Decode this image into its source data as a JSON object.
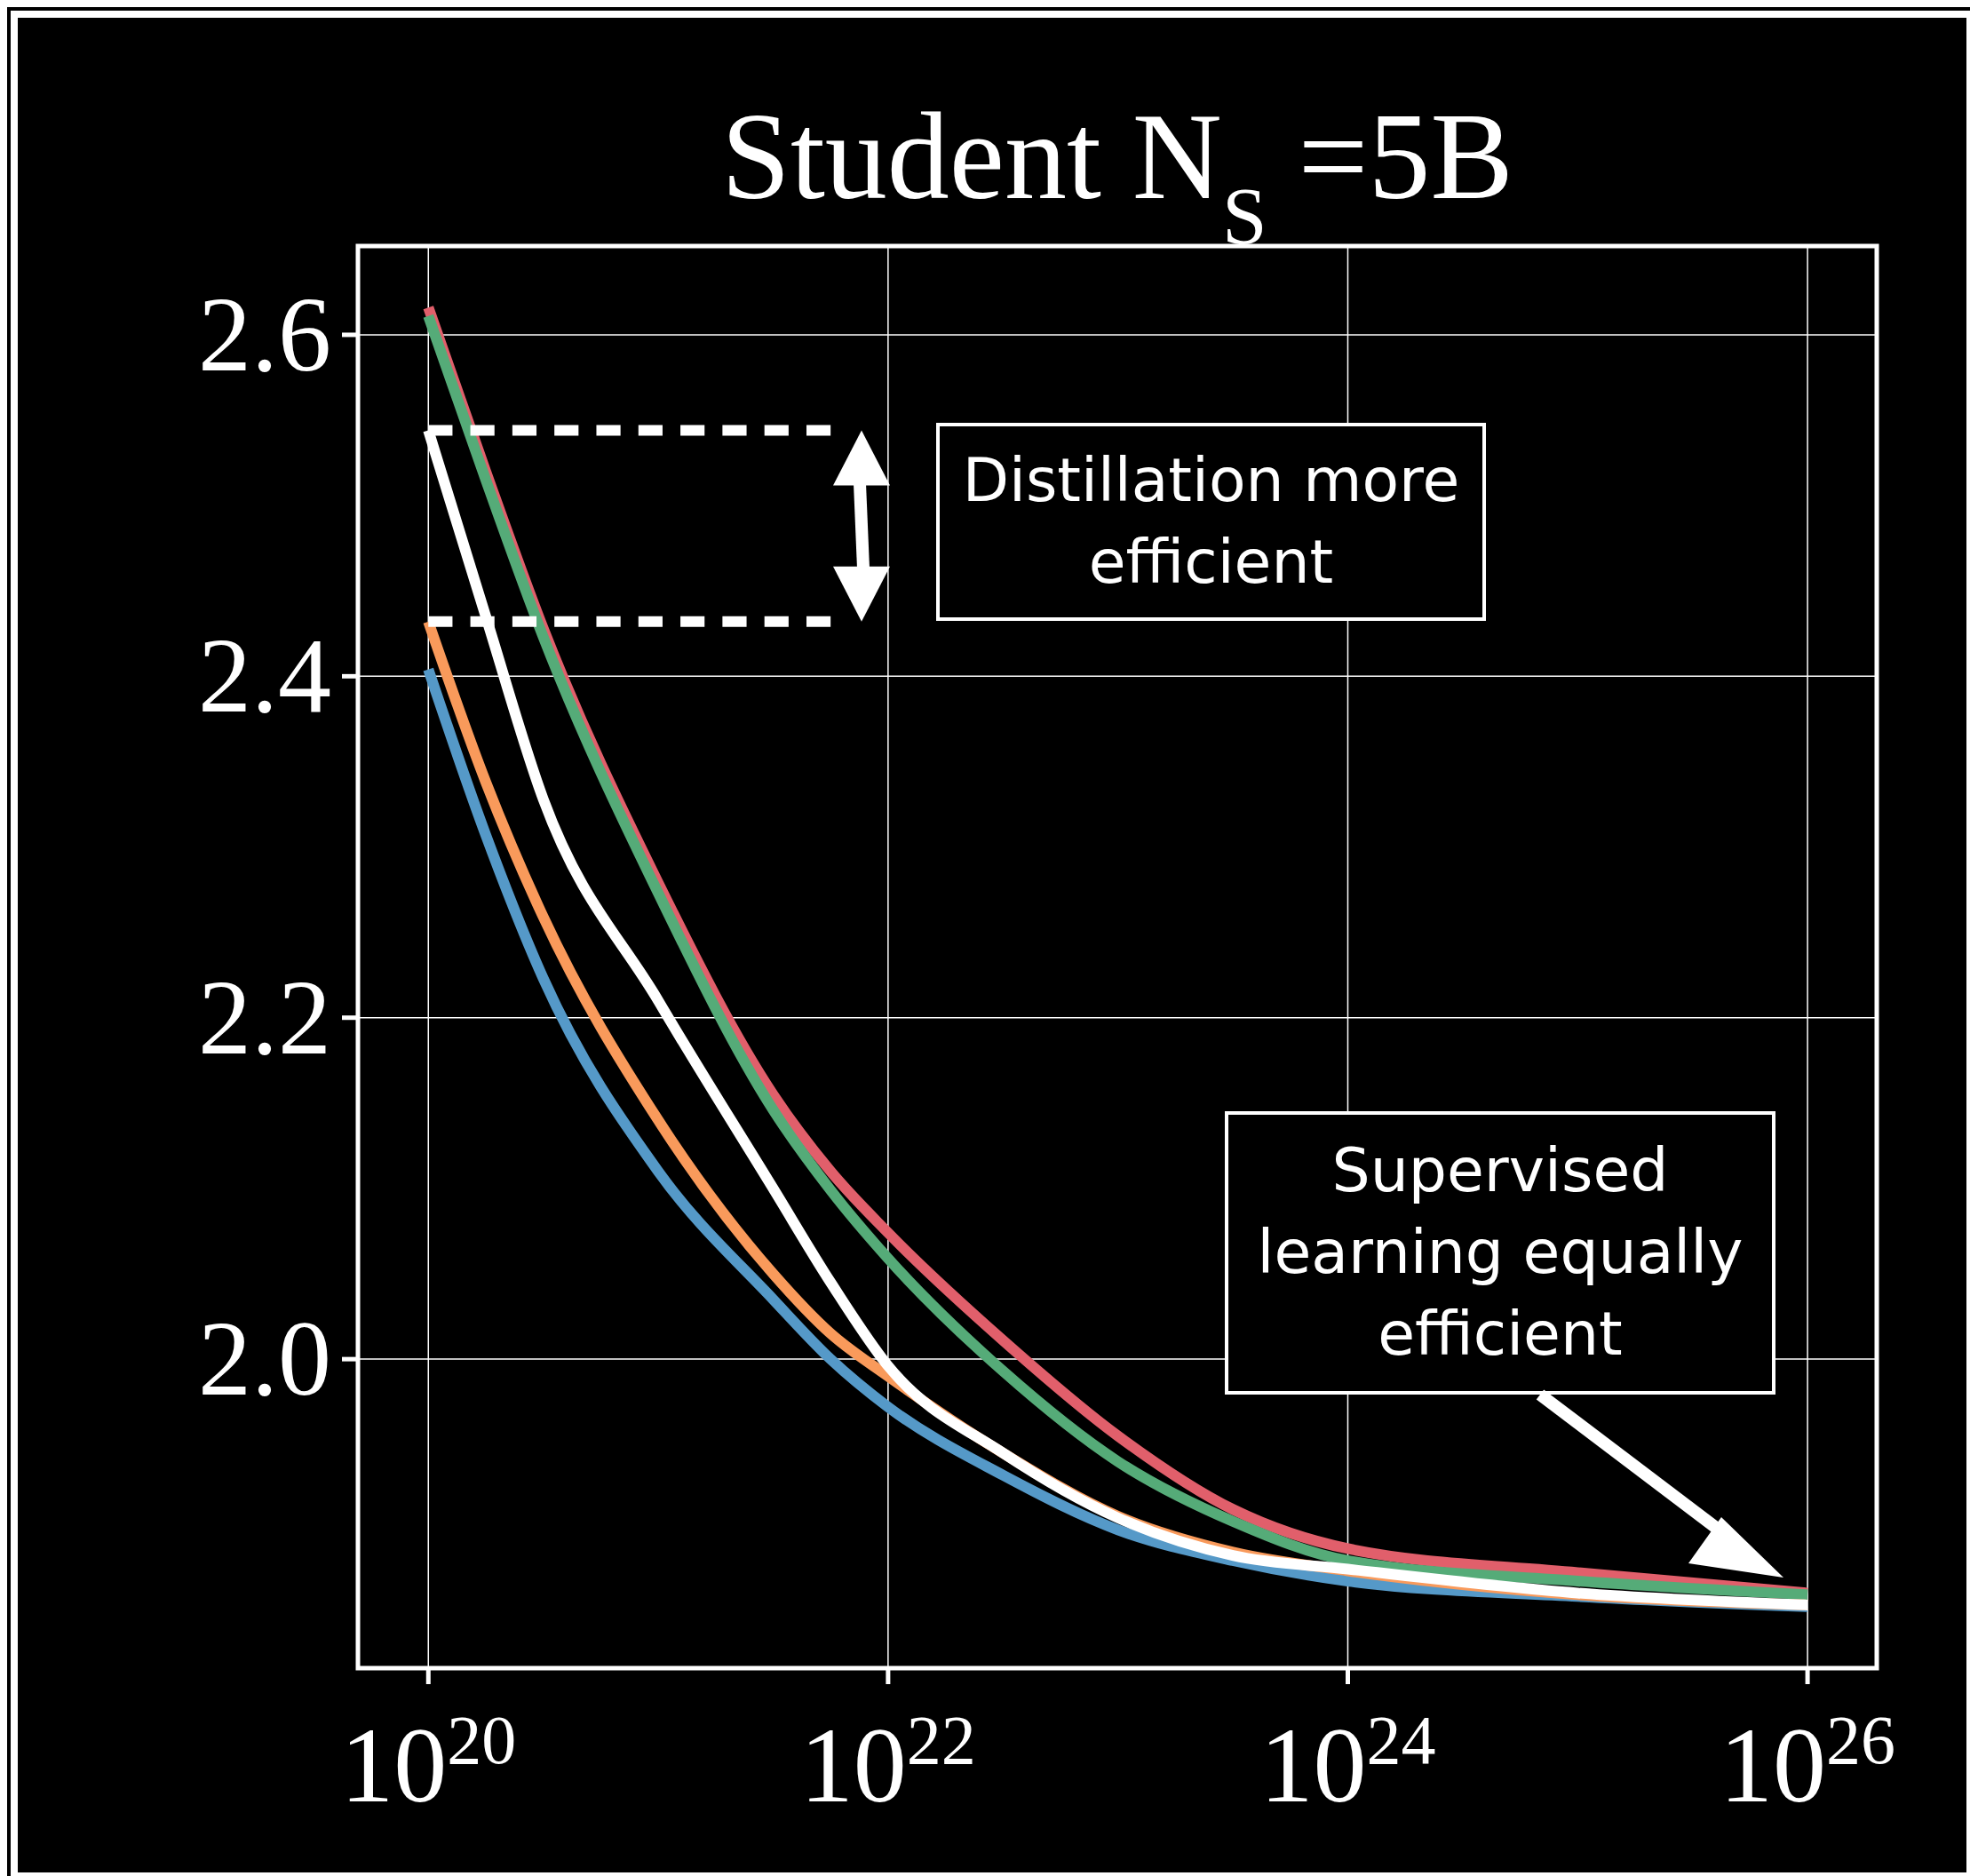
{
  "chart_data": {
    "type": "line",
    "title": "Student N$_{S}$ =5B",
    "log": "x",
    "grid": true,
    "xlim": [
      4.94e+19,
      2e+26
    ],
    "ylim": [
      1.819,
      2.652
    ],
    "xticks": [
      {
        "value": 1e+20,
        "label": "10$^{20}$"
      },
      {
        "value": 1e+22,
        "label": "10$^{22}$"
      },
      {
        "value": 1e+24,
        "label": "10$^{24}$"
      },
      {
        "value": 1e+26,
        "label": "10$^{26}$"
      }
    ],
    "yticks": [
      {
        "value": 2.0,
        "label": "2.0"
      },
      2.2,
      2.4,
      2.6
    ],
    "x": [
      1e+20,
      1.778e+20,
      3.162e+20,
      1e+21,
      3.162e+21,
      5.623e+21,
      1e+22,
      3.162e+22,
      1e+23,
      3.162e+23,
      1e+24,
      1e+25,
      1e+26
    ],
    "series": [
      {
        "color": "#e15f6b",
        "values": [
          2.616,
          2.52,
          2.428,
          2.279,
          2.155,
          2.11,
          2.074,
          2.011,
          1.955,
          1.912,
          1.889,
          1.875,
          1.863
        ]
      },
      {
        "color": "#55ab78",
        "values": [
          2.611,
          2.515,
          2.423,
          2.273,
          2.146,
          2.099,
          2.059,
          1.993,
          1.94,
          1.905,
          1.882,
          1.87,
          1.862
        ]
      },
      {
        "color": "#5599c8",
        "values": [
          2.404,
          2.307,
          2.223,
          2.11,
          2.035,
          2.0,
          1.972,
          1.932,
          1.9,
          1.882,
          1.87,
          1.861,
          1.855
        ]
      },
      {
        "color": "#f99a5b",
        "values": [
          2.432,
          2.338,
          2.259,
          2.14,
          2.05,
          2.015,
          1.99,
          1.945,
          1.908,
          1.887,
          1.876,
          1.862,
          1.856
        ]
      },
      {
        "color": "#ffffff",
        "values": [
          2.544,
          2.435,
          2.328,
          2.21,
          2.1,
          2.045,
          1.996,
          1.945,
          1.907,
          1.885,
          1.877,
          1.863,
          1.856
        ]
      },
      {
        "color": "#ffffff",
        "line_style": "dashed",
        "values": [
          2.544,
          null,
          null,
          null,
          null,
          2.544,
          null,
          null,
          null,
          null,
          null,
          null,
          null
        ]
      },
      {
        "color": "#ffffff",
        "line_style": "dashed",
        "values": [
          2.432,
          null,
          null,
          null,
          null,
          2.432,
          null,
          null,
          null,
          null,
          null,
          null,
          null
        ]
      }
    ],
    "annotations": [
      "Distillation more\nefficient",
      "Supervised\nlearning equally\nefficient"
    ]
  }
}
